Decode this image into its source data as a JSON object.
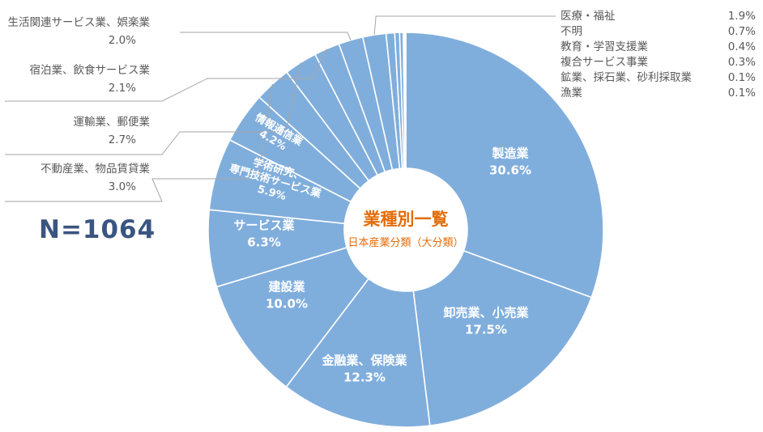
{
  "center": {
    "title": "業種別一覧",
    "subtitle": "日本産業分類（大分類）"
  },
  "sample": "N=1064",
  "colors": {
    "slice": "#80aedc",
    "stroke": "#ffffff",
    "leader": "#a6a6a6",
    "center": "#e36c0a"
  },
  "chart_data": {
    "type": "pie",
    "variant": "donut",
    "series": [
      {
        "categories": [
          "製造業",
          "卸売業、小売業",
          "金融業、保険業",
          "建設業",
          "サービス業",
          "学術研究、専門技術サービス業",
          "情報通信業",
          "不動産業、物品賃貸業",
          "運輸業、郵便業",
          "宿泊業、飲食サービス業",
          "生活関連サービス業、娯楽業",
          "医療・福祉",
          "不明",
          "教育・学習支援業",
          "複合サービス事業",
          "鉱業、採石業、砂利採取業",
          "漁業"
        ],
        "values": [
          30.6,
          17.5,
          12.3,
          10.0,
          6.3,
          5.9,
          4.2,
          3.0,
          2.7,
          2.1,
          2.0,
          1.9,
          0.7,
          0.4,
          0.3,
          0.1,
          0.1
        ]
      }
    ],
    "value_labels": [
      "30.6%",
      "17.5%",
      "12.3%",
      "10.0%",
      "6.3%",
      "5.9%",
      "4.2%",
      "3.0%",
      "2.7%",
      "2.1%",
      "2.0%",
      "1.9%",
      "0.7%",
      "0.4%",
      "0.3%",
      "0.1%",
      "0.1%"
    ],
    "inside_labels": [
      {
        "lines": [
          "製造業"
        ],
        "value": "30.6%"
      },
      {
        "lines": [
          "卸売業、小売業"
        ],
        "value": "17.5%"
      },
      {
        "lines": [
          "金融業、保険業"
        ],
        "value": "12.3%"
      },
      {
        "lines": [
          "建設業"
        ],
        "value": "10.0%"
      },
      {
        "lines": [
          "サービス業"
        ],
        "value": "6.3%"
      },
      {
        "lines": [
          "学術研究、",
          "専門技術サービス業"
        ],
        "value": "5.9%"
      },
      {
        "lines": [
          "情報通信業"
        ],
        "value": "4.2%"
      }
    ],
    "left_labels": [
      {
        "lines": [
          "生活関連サービス業、娯楽業"
        ],
        "value": "2.0%"
      },
      {
        "lines": [
          "宿泊業、飲食サービス業"
        ],
        "value": "2.1%"
      },
      {
        "lines": [
          "運輸業、郵便業"
        ],
        "value": "2.7%"
      },
      {
        "lines": [
          "不動産業、物品賃貸業"
        ],
        "value": "3.0%"
      }
    ],
    "right_list": [
      {
        "name": "医療・福祉",
        "value": "1.9%"
      },
      {
        "name": "不明",
        "value": "0.7%"
      },
      {
        "name": "教育・学習支援業",
        "value": "0.4%"
      },
      {
        "name": "複合サービス事業",
        "value": "0.3%"
      },
      {
        "name": "鉱業、採石業、砂利採取業",
        "value": "0.1%"
      },
      {
        "name": "漁業",
        "value": "0.1%"
      }
    ]
  }
}
